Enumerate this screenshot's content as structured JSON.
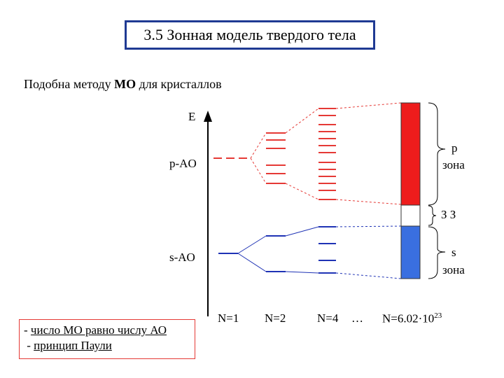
{
  "title": "3.5 Зонная модель твердого тела",
  "subtitle": {
    "prefix": "Подобна методу ",
    "bold": "МО",
    "suffix": " для кристаллов"
  },
  "axis_label": "E",
  "levels": {
    "p_ao": "p-AO",
    "s_ao": "s-AO"
  },
  "n_labels": [
    "N=1",
    "N=2",
    "N=4",
    "…"
  ],
  "n_large": {
    "prefix": "N=6.02·10",
    "exp": "23"
  },
  "bands": {
    "p_letter": "p",
    "p_word": "зона",
    "gap": "З З",
    "s_letter": "s",
    "s_word": "зона"
  },
  "notes": {
    "line1_dash": "- ",
    "line1_text": "число МО равно числу АО",
    "line2_dash": " - ",
    "line2_text": "принцип Паули"
  },
  "colors": {
    "title_border": "#1f3a93",
    "p_band": "#ee1c1c",
    "s_band": "#3a6fe0",
    "p_line": "#e53935",
    "s_line": "#1f33b5",
    "note_border": "#e53935"
  }
}
